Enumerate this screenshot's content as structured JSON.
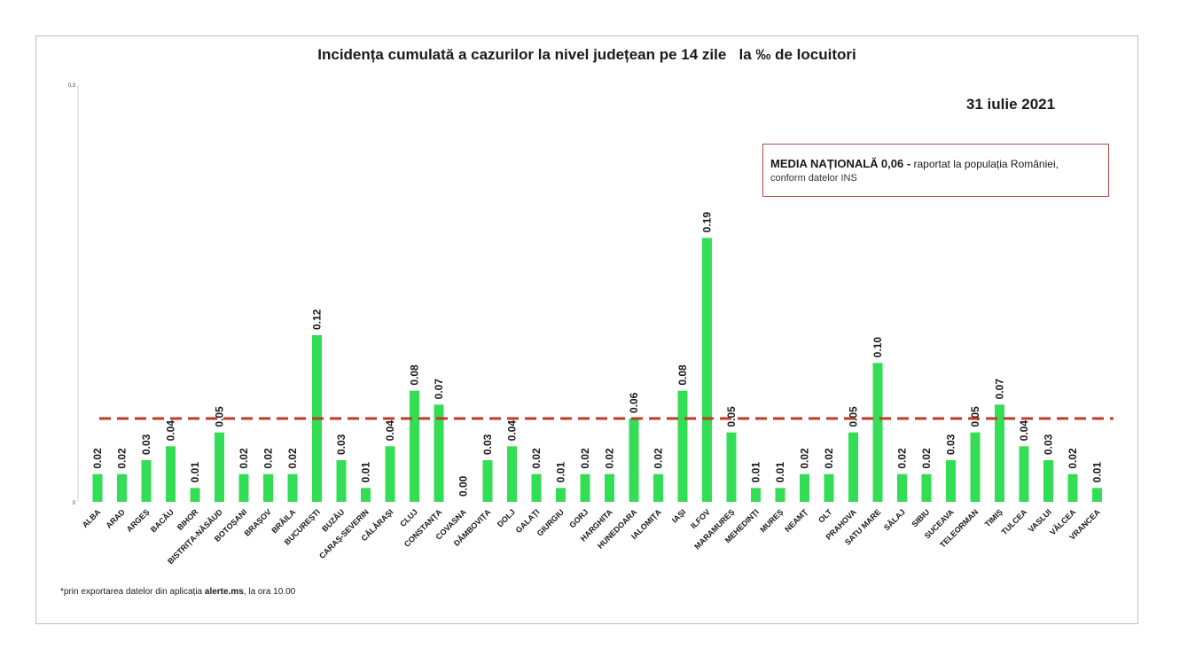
{
  "title": "Incidența cumulată a cazurilor la nivel județean pe 14 zile   la ‰ de locuitori",
  "date": "31 iulie 2021",
  "media_box": {
    "label": "MEDIA NAȚIONALĂ",
    "value": "0,06 -",
    "text1": "raportat la populația României,",
    "text2": "conform datelor INS"
  },
  "footnote": {
    "before": "*prin exportarea datelor din aplicația ",
    "bold": "alerte.ms",
    "after": ", la ora 10.00"
  },
  "colors": {
    "bar": "#33dd55",
    "reference_line": "#c0392b",
    "frame": "#bdbdbd"
  },
  "chart_data": {
    "type": "bar",
    "title": "Incidența cumulată a cazurilor la nivel județean pe 14 zile   la ‰ de locuitori",
    "categories": [
      "ALBA",
      "ARAD",
      "ARGEȘ",
      "BACĂU",
      "BIHOR",
      "BISTRIȚA-NĂSĂUD",
      "BOTOȘANI",
      "BRAȘOV",
      "BRĂILA",
      "BUCUREȘTI",
      "BUZĂU",
      "CARAȘ-SEVERIN",
      "CĂLĂRAȘI",
      "CLUJ",
      "CONSTANȚA",
      "COVASNA",
      "DÂMBOVIȚA",
      "DOLJ",
      "GALAȚI",
      "GIURGIU",
      "GORJ",
      "HARGHITA",
      "HUNEDOARA",
      "IALOMIȚA",
      "IAȘI",
      "ILFOV",
      "MARAMUREȘ",
      "MEHEDINȚI",
      "MUREȘ",
      "NEAMȚ",
      "OLT",
      "PRAHOVA",
      "SATU MARE",
      "SĂLAJ",
      "SIBIU",
      "SUCEAVA",
      "TELEORMAN",
      "TIMIȘ",
      "TULCEA",
      "VASLUI",
      "VÂLCEA",
      "VRANCEA"
    ],
    "values": [
      0.02,
      0.02,
      0.03,
      0.04,
      0.01,
      0.05,
      0.02,
      0.02,
      0.02,
      0.12,
      0.03,
      0.01,
      0.04,
      0.08,
      0.07,
      0.0,
      0.03,
      0.04,
      0.02,
      0.01,
      0.02,
      0.02,
      0.06,
      0.02,
      0.08,
      0.19,
      0.05,
      0.01,
      0.01,
      0.02,
      0.02,
      0.05,
      0.1,
      0.02,
      0.02,
      0.03,
      0.05,
      0.07,
      0.04,
      0.03,
      0.02,
      0.01
    ],
    "value_labels": [
      "0.02",
      "0.02",
      "0.03",
      "0.04",
      "0.01",
      "0.05",
      "0.02",
      "0.02",
      "0.02",
      "0.12",
      "0.03",
      "0.01",
      "0.04",
      "0.08",
      "0.07",
      "0.00",
      "0.03",
      "0.04",
      "0.02",
      "0.01",
      "0.02",
      "0.02",
      "0.06",
      "0.02",
      "0.08",
      "0.19",
      "0.05",
      "0.01",
      "0.01",
      "0.02",
      "0.02",
      "0.05",
      "0.10",
      "0.02",
      "0.02",
      "0.03",
      "0.05",
      "0.07",
      "0.04",
      "0.03",
      "0.02",
      "0.01"
    ],
    "reference_line": 0.06,
    "ylim": [
      0,
      0.3
    ],
    "y_ticks": [
      "0",
      "0,3"
    ],
    "xlabel": "",
    "ylabel": "",
    "grid": false,
    "legend": "none"
  }
}
